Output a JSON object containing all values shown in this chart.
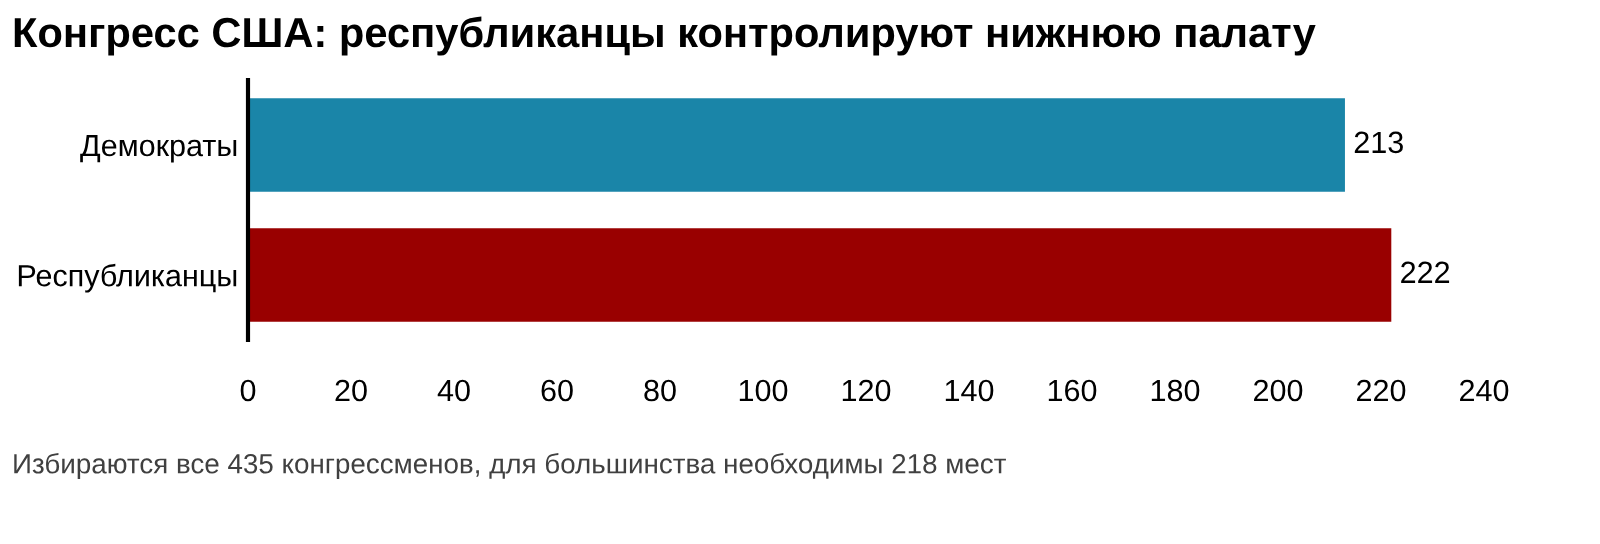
{
  "chart_data": {
    "type": "bar",
    "orientation": "horizontal",
    "title": "Конгресс США: республиканцы контролируют нижнюю палату",
    "categories": [
      "Демократы",
      "Республиканцы"
    ],
    "values": [
      213,
      222
    ],
    "colors": [
      "#1a85a8",
      "#990000"
    ],
    "xlim": [
      0,
      240
    ],
    "xticks": [
      0,
      20,
      40,
      60,
      80,
      100,
      120,
      140,
      160,
      180,
      200,
      220,
      240
    ],
    "data_labels": true,
    "grid": false,
    "legend": false,
    "annotations": [
      "Избираются все 435 конгрессменов, для большинства необходимы 218 мест"
    ]
  }
}
